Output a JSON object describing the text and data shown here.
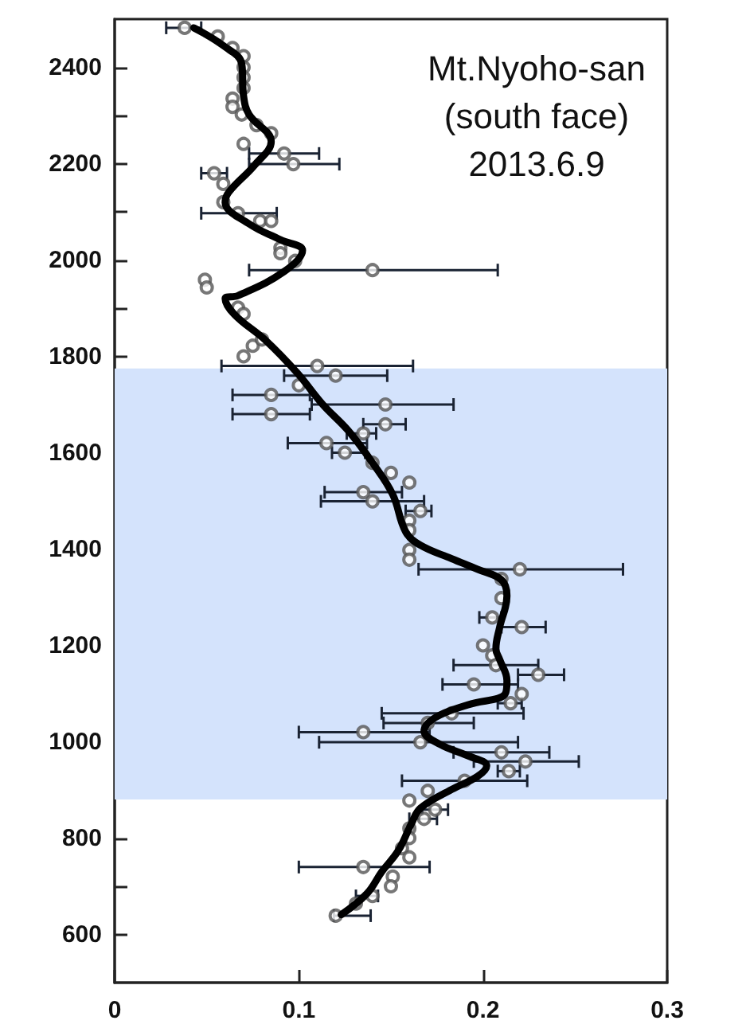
{
  "chart_data": {
    "type": "scatter",
    "annotations": [
      "Mt.Nyoho-san",
      "(south face)",
      "2013.6.9"
    ],
    "xlim": [
      0,
      0.3
    ],
    "xticks": [
      0,
      0.1,
      0.2,
      0.3
    ],
    "ylim": [
      500,
      2500
    ],
    "yticks": [
      600,
      {
        "value": 700,
        "label": null
      },
      800,
      {
        "value": 900,
        "label": null
      },
      1000,
      {
        "value": 1100,
        "label": null
      },
      1200,
      {
        "value": 1300,
        "label": null
      },
      1400,
      {
        "value": 1500,
        "label": null
      },
      1600,
      {
        "value": 1700,
        "label": null
      },
      1800,
      {
        "value": 1900,
        "label": null
      },
      2000,
      {
        "value": 2100,
        "label": null
      },
      2200,
      {
        "value": 2300,
        "label": null
      },
      2400
    ],
    "bands": [
      {
        "axis": "y",
        "from": 880,
        "to": 1775,
        "color": "#d4e3fc"
      }
    ],
    "series": [
      {
        "marker": "circle",
        "color": "#555555",
        "x": [
          0.038,
          0.056,
          0.064,
          0.07,
          0.07,
          0.07,
          0.07,
          0.064,
          0.064,
          0.069,
          0.077,
          0.085,
          0.07,
          0.092,
          0.097,
          0.054,
          0.059,
          0.059,
          0.067,
          0.079,
          0.085,
          0.09,
          0.09,
          0.098,
          0.14,
          0.049,
          0.05,
          0.067,
          0.07,
          0.075,
          0.08,
          0.07,
          0.11,
          0.12,
          0.1,
          0.085,
          0.147,
          0.085,
          0.147,
          0.135,
          0.115,
          0.125,
          0.14,
          0.15,
          0.16,
          0.135,
          0.14,
          0.166,
          0.16,
          0.16,
          0.16,
          0.16,
          0.22,
          0.21,
          0.21,
          0.205,
          0.221,
          0.2,
          0.205,
          0.207,
          0.23,
          0.195,
          0.221,
          0.215,
          0.183,
          0.17,
          0.135,
          0.166,
          0.21,
          0.223,
          0.214,
          0.19,
          0.17,
          0.16,
          0.174,
          0.168,
          0.16,
          0.16,
          0.156,
          0.16,
          0.135,
          0.151,
          0.15,
          0.14,
          0.131,
          0.12
        ],
        "values": [
          2482,
          2464,
          2440,
          2423,
          2400,
          2379,
          2357,
          2335,
          2318,
          2302,
          2280,
          2263,
          2241,
          2221,
          2199,
          2180,
          2158,
          2120,
          2097,
          2081,
          2081,
          2025,
          2014,
          1998,
          1979,
          1959,
          1943,
          1901,
          1888,
          1822,
          1835,
          1800,
          1780,
          1760,
          1740,
          1720,
          1700,
          1680,
          1659,
          1640,
          1620,
          1600,
          1579,
          1558,
          1538,
          1518,
          1499,
          1479,
          1459,
          1439,
          1398,
          1378,
          1358,
          1338,
          1298,
          1258,
          1238,
          1200,
          1179,
          1159,
          1139,
          1119,
          1099,
          1080,
          1059,
          1039,
          1020,
          999,
          978,
          959,
          939,
          919,
          898,
          878,
          859,
          840,
          820,
          800,
          779,
          760,
          740,
          720,
          700,
          680,
          664,
          639
        ],
        "xerrors": [
          [
            0.028,
            0.047
          ],
          null,
          null,
          null,
          null,
          null,
          null,
          null,
          null,
          null,
          null,
          null,
          null,
          [
            0.073,
            0.111
          ],
          [
            0.073,
            0.122
          ],
          [
            0.047,
            0.061
          ],
          null,
          null,
          [
            0.047,
            0.088
          ],
          null,
          null,
          null,
          null,
          null,
          [
            0.073,
            0.208
          ],
          null,
          null,
          null,
          null,
          null,
          null,
          null,
          [
            0.058,
            0.162
          ],
          [
            0.092,
            0.148
          ],
          null,
          [
            0.064,
            0.106
          ],
          [
            0.107,
            0.184
          ],
          [
            0.064,
            0.106
          ],
          [
            0.135,
            0.158
          ],
          [
            0.126,
            0.142
          ],
          [
            0.094,
            0.137
          ],
          [
            0.118,
            0.136
          ],
          null,
          null,
          null,
          [
            0.114,
            0.156
          ],
          [
            0.112,
            0.168
          ],
          [
            0.158,
            0.172
          ],
          null,
          null,
          null,
          null,
          [
            0.165,
            0.276
          ],
          null,
          null,
          [
            0.198,
            0.21
          ],
          [
            0.21,
            0.234
          ],
          null,
          null,
          [
            0.184,
            0.23
          ],
          [
            0.219,
            0.244
          ],
          [
            0.178,
            0.219
          ],
          null,
          [
            0.208,
            0.221
          ],
          [
            0.145,
            0.222
          ],
          [
            0.146,
            0.195
          ],
          [
            0.1,
            0.171
          ],
          [
            0.111,
            0.219
          ],
          [
            0.184,
            0.236
          ],
          [
            0.195,
            0.252
          ],
          [
            0.208,
            0.22
          ],
          [
            0.156,
            0.224
          ],
          null,
          null,
          [
            0.167,
            0.181
          ],
          [
            0.16,
            0.175
          ],
          null,
          null,
          null,
          null,
          [
            0.1,
            0.171
          ],
          null,
          null,
          [
            0.131,
            0.143
          ],
          null,
          [
            0.119,
            0.139
          ]
        ]
      },
      {
        "type": "line",
        "marker": "none",
        "line_style": "solid",
        "color": "#000000",
        "x": [
          0.043,
          0.059,
          0.069,
          0.07,
          0.073,
          0.085,
          0.076,
          0.062,
          0.06,
          0.073,
          0.09,
          0.102,
          0.092,
          0.067,
          0.06,
          0.065,
          0.082,
          0.099,
          0.113,
          0.127,
          0.14,
          0.151,
          0.158,
          0.166,
          0.183,
          0.197,
          0.21,
          0.213,
          0.209,
          0.207,
          0.209,
          0.213,
          0.212,
          0.192,
          0.174,
          0.168,
          0.177,
          0.191,
          0.202,
          0.197,
          0.183,
          0.166,
          0.161,
          0.154,
          0.145,
          0.137,
          0.123
        ],
        "values": [
          2482,
          2445,
          2407,
          2340,
          2302,
          2246,
          2197,
          2141,
          2120,
          2075,
          2042,
          2020,
          1976,
          1926,
          1920,
          1887,
          1833,
          1766,
          1700,
          1645,
          1579,
          1513,
          1436,
          1408,
          1380,
          1358,
          1336,
          1303,
          1237,
          1193,
          1171,
          1127,
          1099,
          1077,
          1050,
          1022,
          994,
          972,
          950,
          928,
          901,
          862,
          829,
          774,
          730,
          685,
          641
        ]
      }
    ]
  }
}
